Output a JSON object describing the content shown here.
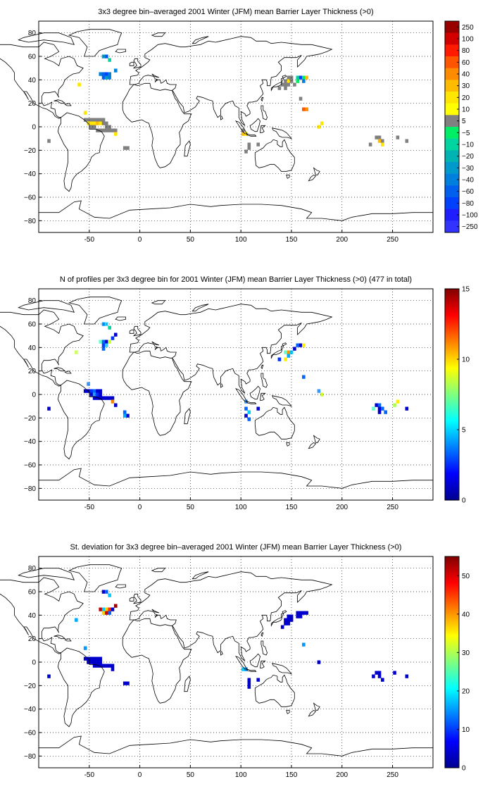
{
  "panels": [
    {
      "id": "mean",
      "title": "3x3 degree bin–averaged 2001 Winter (JFM) mean Barrier Layer Thickness (>0)",
      "colorbar": {
        "type": "discrete",
        "labels": [
          "250",
          "100",
          "80",
          "60",
          "40",
          "30",
          "20",
          "10",
          "5",
          "−5",
          "−10",
          "−20",
          "−30",
          "−40",
          "−60",
          "−80",
          "−100",
          "−250"
        ],
        "colors": [
          "#990000",
          "#d40000",
          "#ff1a00",
          "#ff5500",
          "#ff8c00",
          "#ffbb00",
          "#ffe600",
          "#ffff00",
          "#808080",
          "#00ee66",
          "#00d4a0",
          "#00b3b3",
          "#0099cc",
          "#0080dd",
          "#0060ee",
          "#0040ff",
          "#1e1eff",
          "#3333ff"
        ]
      },
      "cells": [
        [
          -36,
          60,
          "#0099cc"
        ],
        [
          -33,
          60,
          "#0060ee"
        ],
        [
          -30,
          57,
          "#00d4a0"
        ],
        [
          -39,
          45,
          "#0080dd"
        ],
        [
          -36,
          45,
          "#0060ee"
        ],
        [
          -33,
          45,
          "#0040ff"
        ],
        [
          -30,
          45,
          "#0080dd"
        ],
        [
          -36,
          42,
          "#0060ee"
        ],
        [
          -33,
          42,
          "#0099cc"
        ],
        [
          -30,
          42,
          "#0080dd"
        ],
        [
          -24,
          48,
          "#0080dd"
        ],
        [
          -60,
          36,
          "#ffe600"
        ],
        [
          -54,
          12,
          "#ffe600"
        ],
        [
          -54,
          6,
          "#808080"
        ],
        [
          -51,
          6,
          "#808080"
        ],
        [
          -48,
          6,
          "#808080"
        ],
        [
          -45,
          6,
          "#808080"
        ],
        [
          -42,
          6,
          "#808080"
        ],
        [
          -39,
          6,
          "#808080"
        ],
        [
          -36,
          6,
          "#808080"
        ],
        [
          -51,
          3,
          "#ffe600"
        ],
        [
          -48,
          3,
          "#ffe600"
        ],
        [
          -45,
          3,
          "#ffe600"
        ],
        [
          -42,
          3,
          "#ffbb00"
        ],
        [
          -39,
          3,
          "#ffe600"
        ],
        [
          -36,
          3,
          "#808080"
        ],
        [
          -33,
          3,
          "#808080"
        ],
        [
          -48,
          0,
          "#808080"
        ],
        [
          -45,
          0,
          "#808080"
        ],
        [
          -33,
          0,
          "#808080"
        ],
        [
          -30,
          0,
          "#808080"
        ],
        [
          -42,
          -3,
          "#808080"
        ],
        [
          -39,
          -3,
          "#808080"
        ],
        [
          -36,
          -3,
          "#808080"
        ],
        [
          -33,
          -3,
          "#808080"
        ],
        [
          -30,
          -3,
          "#808080"
        ],
        [
          -27,
          -3,
          "#808080"
        ],
        [
          -24,
          -3,
          "#808080"
        ],
        [
          -24,
          -6,
          "#ffe600"
        ],
        [
          -90,
          -12,
          "#808080"
        ],
        [
          -15,
          -18,
          "#808080"
        ],
        [
          -12,
          -18,
          "#808080"
        ],
        [
          102,
          -6,
          "#ffbb00"
        ],
        [
          105,
          -6,
          "#ffe600"
        ],
        [
          102,
          -3,
          "#808080"
        ],
        [
          108,
          -15,
          "#808080"
        ],
        [
          108,
          -18,
          "#808080"
        ],
        [
          105,
          -21,
          "#808080"
        ],
        [
          117,
          -15,
          "#808080"
        ],
        [
          147,
          42,
          "#808080"
        ],
        [
          150,
          42,
          "#808080"
        ],
        [
          156,
          42,
          "#00d4a0"
        ],
        [
          159,
          42,
          "#0040ff"
        ],
        [
          162,
          42,
          "#00ee66"
        ],
        [
          165,
          42,
          "#ffbb00"
        ],
        [
          144,
          39,
          "#808080"
        ],
        [
          147,
          39,
          "#ffe600"
        ],
        [
          150,
          39,
          "#808080"
        ],
        [
          156,
          39,
          "#00ee66"
        ],
        [
          162,
          39,
          "#0080dd"
        ],
        [
          141,
          36,
          "#808080"
        ],
        [
          144,
          36,
          "#808080"
        ],
        [
          147,
          36,
          "#808080"
        ],
        [
          153,
          36,
          "#808080"
        ],
        [
          138,
          33,
          "#808080"
        ],
        [
          144,
          33,
          "#808080"
        ],
        [
          162,
          15,
          "#ff5500"
        ],
        [
          165,
          15,
          "#ff8c00"
        ],
        [
          159,
          24,
          "#808080"
        ],
        [
          180,
          3,
          "#ffe600"
        ],
        [
          177,
          0,
          "#ffe600"
        ],
        [
          234,
          -9,
          "#808080"
        ],
        [
          237,
          -9,
          "#808080"
        ],
        [
          237,
          -12,
          "#ffbb00"
        ],
        [
          240,
          -12,
          "#808080"
        ],
        [
          228,
          -15,
          "#808080"
        ],
        [
          240,
          -15,
          "#ffe600"
        ],
        [
          255,
          -9,
          "#808080"
        ],
        [
          264,
          -12,
          "#808080"
        ]
      ]
    },
    {
      "id": "count",
      "title": "N of profiles per 3x3 degree bin for 2001 Winter (JFM) mean Barrier Layer Thickness (>0) (477 in total)",
      "colorbar": {
        "type": "jet",
        "min": 0,
        "max": 15,
        "ticks": [
          "15",
          "10",
          "5",
          "0"
        ]
      },
      "cells": [
        [
          -36,
          60,
          "#0099ff"
        ],
        [
          -33,
          60,
          "#33ccff"
        ],
        [
          -30,
          57,
          "#00d4a0"
        ],
        [
          -39,
          45,
          "#66ffcc"
        ],
        [
          -36,
          45,
          "#0066ff"
        ],
        [
          -33,
          45,
          "#0000cc"
        ],
        [
          -30,
          45,
          "#ccff33"
        ],
        [
          -36,
          42,
          "#0040ff"
        ],
        [
          -33,
          42,
          "#33ccff"
        ],
        [
          -27,
          48,
          "#0033ff"
        ],
        [
          -24,
          51,
          "#0000cc"
        ],
        [
          -36,
          39,
          "#0066ff"
        ],
        [
          -63,
          36,
          "#ccff66"
        ],
        [
          -51,
          9,
          "#3399ff"
        ],
        [
          -54,
          3,
          "#0000cc"
        ],
        [
          -51,
          3,
          "#0000cc"
        ],
        [
          -48,
          3,
          "#0033ff"
        ],
        [
          -45,
          3,
          "#0066ff"
        ],
        [
          -42,
          3,
          "#0000cc"
        ],
        [
          -39,
          3,
          "#0000cc"
        ],
        [
          -48,
          0,
          "#0000cc"
        ],
        [
          -45,
          0,
          "#3399ff"
        ],
        [
          -42,
          0,
          "#0033ff"
        ],
        [
          -39,
          0,
          "#0000cc"
        ],
        [
          -45,
          -3,
          "#0000cc"
        ],
        [
          -42,
          -3,
          "#0000cc"
        ],
        [
          -39,
          -3,
          "#0000cc"
        ],
        [
          -36,
          -3,
          "#0000cc"
        ],
        [
          -33,
          -3,
          "#0000cc"
        ],
        [
          -30,
          -3,
          "#0000cc"
        ],
        [
          -27,
          -3,
          "#0000cc"
        ],
        [
          -27,
          -6,
          "#ff8800"
        ],
        [
          -24,
          -9,
          "#0000cc"
        ],
        [
          -90,
          -12,
          "#0000cc"
        ],
        [
          -15,
          -15,
          "#0066ff"
        ],
        [
          -12,
          -18,
          "#0000cc"
        ],
        [
          -15,
          -18,
          "#00aaff"
        ],
        [
          105,
          -6,
          "#3399ff"
        ],
        [
          105,
          -12,
          "#0066ff"
        ],
        [
          108,
          -15,
          "#00ccff"
        ],
        [
          105,
          -18,
          "#0000cc"
        ],
        [
          108,
          -21,
          "#0066ff"
        ],
        [
          117,
          -12,
          "#0000cc"
        ],
        [
          156,
          42,
          "#0066ff"
        ],
        [
          159,
          42,
          "#0000cc"
        ],
        [
          162,
          42,
          "#ffee00"
        ],
        [
          153,
          39,
          "#0000cc"
        ],
        [
          147,
          36,
          "#ff9900"
        ],
        [
          150,
          36,
          "#00ccff"
        ],
        [
          144,
          36,
          "#66ffcc"
        ],
        [
          147,
          33,
          "#00aaff"
        ],
        [
          144,
          30,
          "#ffee00"
        ],
        [
          138,
          30,
          "#0033ff"
        ],
        [
          162,
          15,
          "#0066ff"
        ],
        [
          177,
          3,
          "#3399ff"
        ],
        [
          180,
          0,
          "#ccff33"
        ],
        [
          234,
          -9,
          "#0000cc"
        ],
        [
          237,
          -9,
          "#0066ff"
        ],
        [
          231,
          -12,
          "#66ffcc"
        ],
        [
          237,
          -12,
          "#0000cc"
        ],
        [
          240,
          -12,
          "#0066ff"
        ],
        [
          237,
          -15,
          "#0000cc"
        ],
        [
          243,
          -15,
          "#0066ff"
        ],
        [
          255,
          -6,
          "#ffee00"
        ],
        [
          252,
          -9,
          "#aaff55"
        ],
        [
          264,
          -12,
          "#0000cc"
        ]
      ]
    },
    {
      "id": "stdev",
      "title": "St. deviation for 3x3 degree bin–averaged 2001 Winter (JFM) mean Barrier Layer Thickness (>0)",
      "colorbar": {
        "type": "jet",
        "min": 0,
        "max": 55,
        "ticks": [
          "50",
          "40",
          "30",
          "20",
          "10",
          "0"
        ]
      },
      "cells": [
        [
          -36,
          60,
          "#0000cc"
        ],
        [
          -33,
          60,
          "#0066ff"
        ],
        [
          -30,
          57,
          "#00ccff"
        ],
        [
          -39,
          45,
          "#cc0000"
        ],
        [
          -36,
          45,
          "#00ccff"
        ],
        [
          -33,
          45,
          "#ffcc00"
        ],
        [
          -30,
          45,
          "#ff3300"
        ],
        [
          -36,
          42,
          "#ffcc00"
        ],
        [
          -33,
          42,
          "#cc0000"
        ],
        [
          -30,
          42,
          "#0066ff"
        ],
        [
          -24,
          48,
          "#990000"
        ],
        [
          -27,
          45,
          "#0000cc"
        ],
        [
          -63,
          36,
          "#00aaff"
        ],
        [
          -54,
          12,
          "#0099ff"
        ],
        [
          -54,
          3,
          "#0000cc"
        ],
        [
          -51,
          3,
          "#0000cc"
        ],
        [
          -48,
          3,
          "#0000cc"
        ],
        [
          -45,
          3,
          "#0000cc"
        ],
        [
          -42,
          3,
          "#0000cc"
        ],
        [
          -39,
          3,
          "#0000cc"
        ],
        [
          -51,
          0,
          "#0000cc"
        ],
        [
          -48,
          0,
          "#0000cc"
        ],
        [
          -45,
          0,
          "#0000cc"
        ],
        [
          -42,
          0,
          "#0000cc"
        ],
        [
          -39,
          0,
          "#0000cc"
        ],
        [
          -45,
          -3,
          "#0000cc"
        ],
        [
          -42,
          -3,
          "#0000cc"
        ],
        [
          -39,
          -3,
          "#0000cc"
        ],
        [
          -36,
          -3,
          "#0000cc"
        ],
        [
          -33,
          -3,
          "#0000cc"
        ],
        [
          -30,
          -3,
          "#0000cc"
        ],
        [
          -27,
          -3,
          "#0000cc"
        ],
        [
          -27,
          -6,
          "#0000cc"
        ],
        [
          -90,
          -12,
          "#0000cc"
        ],
        [
          -15,
          -18,
          "#0000cc"
        ],
        [
          -12,
          -18,
          "#0000cc"
        ],
        [
          102,
          -6,
          "#00ccff"
        ],
        [
          105,
          -6,
          "#0099ff"
        ],
        [
          108,
          -15,
          "#0000cc"
        ],
        [
          108,
          -18,
          "#0000cc"
        ],
        [
          108,
          -21,
          "#0000cc"
        ],
        [
          117,
          -15,
          "#0000cc"
        ],
        [
          156,
          42,
          "#0000cc"
        ],
        [
          159,
          42,
          "#0000cc"
        ],
        [
          162,
          42,
          "#0000cc"
        ],
        [
          165,
          42,
          "#0000cc"
        ],
        [
          147,
          39,
          "#0000cc"
        ],
        [
          150,
          39,
          "#0000cc"
        ],
        [
          156,
          39,
          "#0000cc"
        ],
        [
          159,
          39,
          "#0000cc"
        ],
        [
          144,
          36,
          "#0000cc"
        ],
        [
          147,
          36,
          "#0000cc"
        ],
        [
          150,
          36,
          "#0000cc"
        ],
        [
          144,
          33,
          "#0000cc"
        ],
        [
          147,
          33,
          "#0000cc"
        ],
        [
          141,
          30,
          "#0000cc"
        ],
        [
          162,
          15,
          "#0099ff"
        ],
        [
          177,
          0,
          "#0000cc"
        ],
        [
          234,
          -9,
          "#0000cc"
        ],
        [
          237,
          -9,
          "#0000cc"
        ],
        [
          231,
          -12,
          "#0000cc"
        ],
        [
          237,
          -12,
          "#0000cc"
        ],
        [
          240,
          -15,
          "#0000cc"
        ],
        [
          252,
          -9,
          "#0000cc"
        ],
        [
          264,
          -12,
          "#0000cc"
        ]
      ]
    }
  ],
  "axes": {
    "x_ticks": [
      "-50",
      "0",
      "50",
      "100",
      "150",
      "200",
      "250"
    ],
    "y_ticks": [
      "80",
      "60",
      "40",
      "20",
      "0",
      "−20",
      "−40",
      "−60",
      "−80"
    ],
    "lon_range": [
      -100,
      290
    ],
    "lat_range": [
      -90,
      90
    ]
  }
}
